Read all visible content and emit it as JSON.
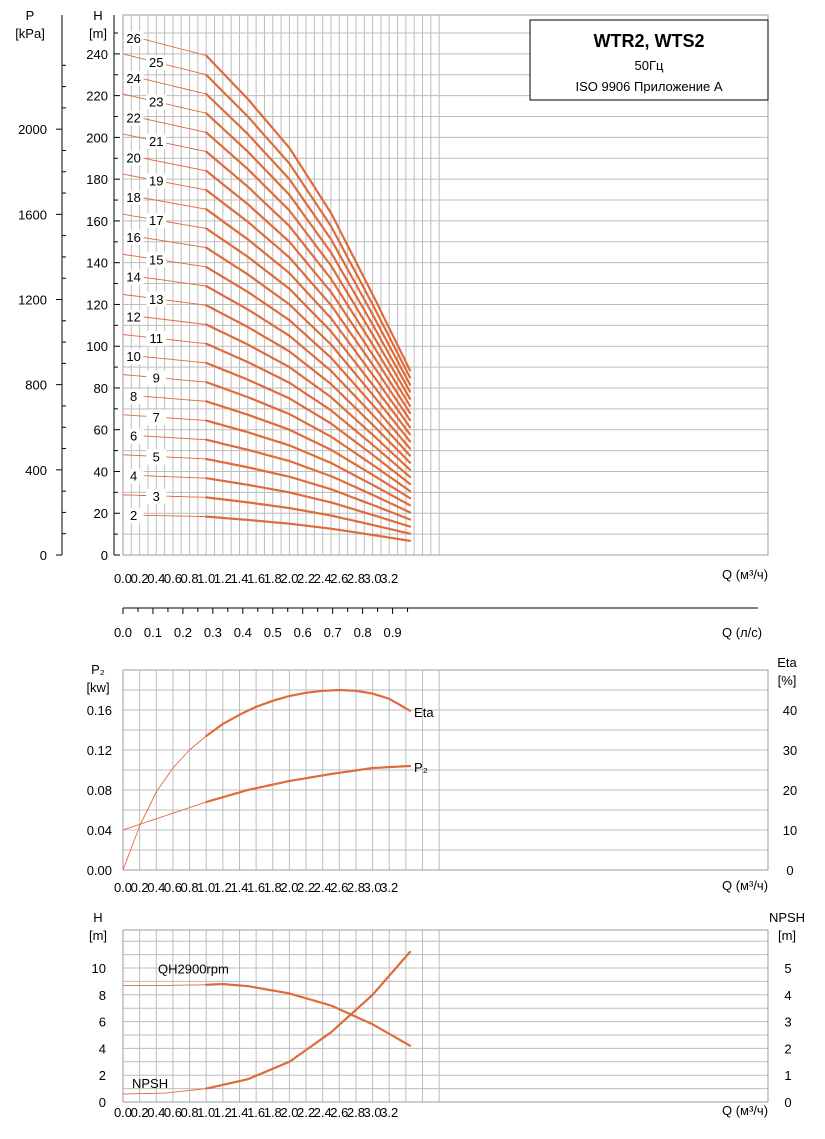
{
  "title_box": {
    "line1": "WTR2, WTS2",
    "line2": "50Гц",
    "line3": "ISO 9906 Приложение A"
  },
  "colors": {
    "curve": "#e06b3a",
    "grid": "#bdbdbd",
    "text": "#000000"
  },
  "chart_data": [
    {
      "type": "line",
      "id": "qh-family",
      "ylabel_left_outer": "P",
      "ylabel_left_outer_unit": "[kPa]",
      "ylabel_left": "H",
      "ylabel_left_unit": "[m]",
      "xlabel": "Q (м³/ч)",
      "xlabel2": "Q (л/с)",
      "xlim": [
        0,
        3.6
      ],
      "ylim": [
        0,
        250
      ],
      "x_ticks": [
        "0.0",
        "0.2",
        "0.4",
        "0.6",
        "0.8",
        "1.0",
        "1.2",
        "1.4",
        "1.6",
        "1.8",
        "2.0",
        "2.2",
        "2.4",
        "2.6",
        "2.8",
        "3.0",
        "3.2"
      ],
      "x2_ticks": [
        "0.0",
        "0.1",
        "0.2",
        "0.3",
        "0.4",
        "0.5",
        "0.6",
        "0.7",
        "0.8",
        "0.9"
      ],
      "y_ticks": [
        "0",
        "20",
        "40",
        "60",
        "80",
        "100",
        "120",
        "140",
        "160",
        "180",
        "200",
        "220",
        "240"
      ],
      "p_ticks": [
        "0",
        "400",
        "800",
        "1200",
        "1600",
        "2000"
      ],
      "x": [
        0,
        0.5,
        1.0,
        1.5,
        2.0,
        2.5,
        3.0,
        3.45
      ],
      "head_per_stage": [
        9.6,
        9.4,
        9.2,
        8.4,
        7.5,
        6.3,
        4.8,
        3.4
      ],
      "stages": [
        2,
        3,
        4,
        5,
        6,
        7,
        8,
        9,
        10,
        11,
        12,
        13,
        14,
        15,
        16,
        17,
        18,
        19,
        20,
        21,
        22,
        23,
        24,
        25,
        26
      ],
      "stage_labels": [
        "2",
        "3",
        "4",
        "5",
        "6",
        "7",
        "8",
        "9",
        "10",
        "11",
        "12",
        "13",
        "14",
        "15",
        "16",
        "17",
        "18",
        "19",
        "20",
        "21",
        "22",
        "23",
        "24",
        "25",
        "26"
      ]
    },
    {
      "type": "line",
      "id": "power-eff",
      "ylabel_left": "P₂",
      "ylabel_left_unit": "[kw]",
      "ylabel_right": "Eta",
      "ylabel_right_unit": "[%]",
      "xlabel": "Q (м³/ч)",
      "xlim": [
        0,
        3.6
      ],
      "ylim_left": [
        0,
        0.2
      ],
      "ylim_right": [
        0,
        50
      ],
      "y_ticks_left": [
        "0.00",
        "0.04",
        "0.08",
        "0.12",
        "0.16"
      ],
      "y_ticks_right": [
        "0",
        "10",
        "20",
        "30",
        "40"
      ],
      "x_ticks": [
        "0.0",
        "0.2",
        "0.4",
        "0.6",
        "0.8",
        "1.0",
        "1.2",
        "1.4",
        "1.6",
        "1.8",
        "2.0",
        "2.2",
        "2.4",
        "2.6",
        "2.8",
        "3.0",
        "3.2"
      ],
      "series": [
        {
          "name": "Eta",
          "axis": "right",
          "x": [
            0,
            0.2,
            0.4,
            0.6,
            0.8,
            1.0,
            1.2,
            1.4,
            1.6,
            1.8,
            2.0,
            2.2,
            2.4,
            2.6,
            2.8,
            3.0,
            3.2,
            3.45
          ],
          "values": [
            0,
            11,
            19.5,
            25.5,
            30,
            33.5,
            36.5,
            38.8,
            40.8,
            42.3,
            43.5,
            44.3,
            44.8,
            45,
            44.8,
            44.1,
            42.8,
            39.8
          ]
        },
        {
          "name": "P₂",
          "axis": "left",
          "x": [
            0,
            0.5,
            1.0,
            1.5,
            2.0,
            2.5,
            3.0,
            3.45
          ],
          "values": [
            0.04,
            0.054,
            0.068,
            0.08,
            0.089,
            0.096,
            0.102,
            0.104
          ]
        }
      ]
    },
    {
      "type": "line",
      "id": "npsh",
      "ylabel_left": "H",
      "ylabel_left_unit": "[m]",
      "ylabel_right": "NPSH",
      "ylabel_right_unit": "[m]",
      "xlabel": "Q (м³/ч)",
      "xlim": [
        0,
        3.6
      ],
      "ylim_left": [
        0,
        12
      ],
      "ylim_right": [
        0,
        6
      ],
      "y_ticks_left": [
        "0",
        "2",
        "4",
        "6",
        "8",
        "10"
      ],
      "y_ticks_right": [
        "0",
        "1",
        "2",
        "3",
        "4",
        "5"
      ],
      "x_ticks": [
        "0.0",
        "0.2",
        "0.4",
        "0.6",
        "0.8",
        "1.0",
        "1.2",
        "1.4",
        "1.6",
        "1.8",
        "2.0",
        "2.2",
        "2.4",
        "2.6",
        "2.8",
        "3.0",
        "3.2"
      ],
      "series": [
        {
          "name": "QH2900rpm",
          "axis": "left",
          "x": [
            0,
            0.5,
            1.0,
            1.2,
            1.5,
            2.0,
            2.5,
            3.0,
            3.45
          ],
          "values": [
            8.7,
            8.7,
            8.75,
            8.8,
            8.65,
            8.1,
            7.2,
            5.8,
            4.2
          ]
        },
        {
          "name": "NPSH",
          "axis": "right",
          "x": [
            0,
            0.5,
            1.0,
            1.5,
            2.0,
            2.5,
            3.0,
            3.45
          ],
          "values": [
            0.3,
            0.33,
            0.5,
            0.85,
            1.5,
            2.6,
            4.0,
            5.6
          ]
        }
      ]
    }
  ]
}
